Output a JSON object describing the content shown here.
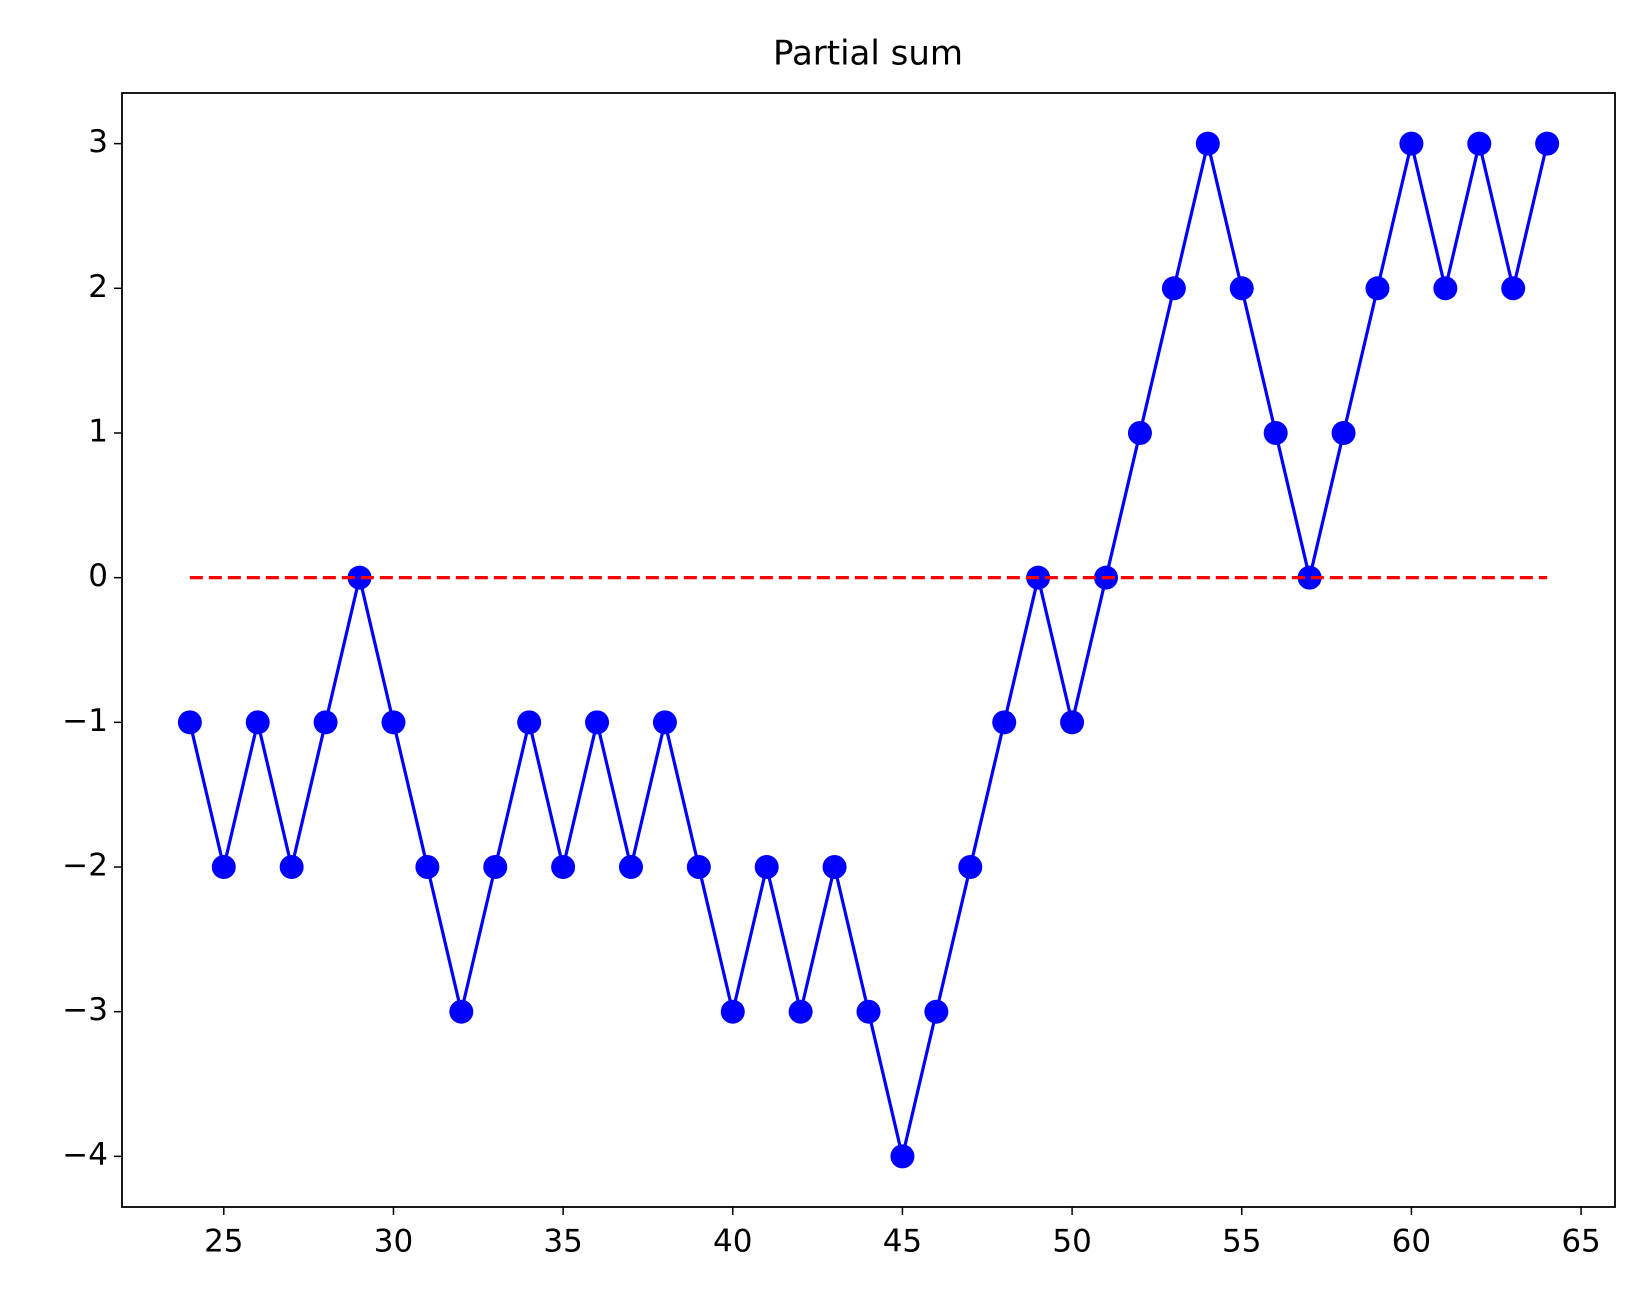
{
  "chart_data": {
    "type": "line",
    "title": "Partial sum",
    "series": [
      {
        "color": "#0000ff",
        "marker": "circle",
        "x": [
          24,
          25,
          26,
          27,
          28,
          29,
          30,
          31,
          32,
          33,
          34,
          35,
          36,
          37,
          38,
          39,
          40,
          41,
          42,
          43,
          44,
          45,
          46,
          47,
          48,
          49,
          50,
          51,
          52,
          53,
          54,
          55,
          56,
          57,
          58,
          59,
          60,
          61,
          62,
          63,
          64
        ],
        "values": [
          -1,
          -2,
          -1,
          -2,
          -1,
          0,
          -1,
          -2,
          -3,
          -2,
          -1,
          -2,
          -1,
          -2,
          -1,
          -2,
          -3,
          -2,
          -3,
          -2,
          -3,
          -4,
          -3,
          -2,
          -1,
          0,
          -1,
          0,
          1,
          2,
          3,
          2,
          1,
          0,
          1,
          2,
          3,
          2,
          3,
          2,
          3
        ]
      },
      {
        "color": "#ff0000",
        "dashed": true,
        "x": [
          24,
          64
        ],
        "values": [
          0,
          0
        ]
      }
    ],
    "xlim": [
      22,
      66
    ],
    "xticks": [
      25,
      30,
      35,
      40,
      45,
      50,
      55,
      60,
      65
    ],
    "ylim": [
      -4.35,
      3.35
    ],
    "yticks": [
      {
        "value": -4,
        "label": "−4"
      },
      {
        "value": -3,
        "label": "−3"
      },
      {
        "value": -2,
        "label": "−2"
      },
      {
        "value": -1,
        "label": "−1"
      },
      0,
      1,
      2,
      3
    ],
    "grid": false
  }
}
